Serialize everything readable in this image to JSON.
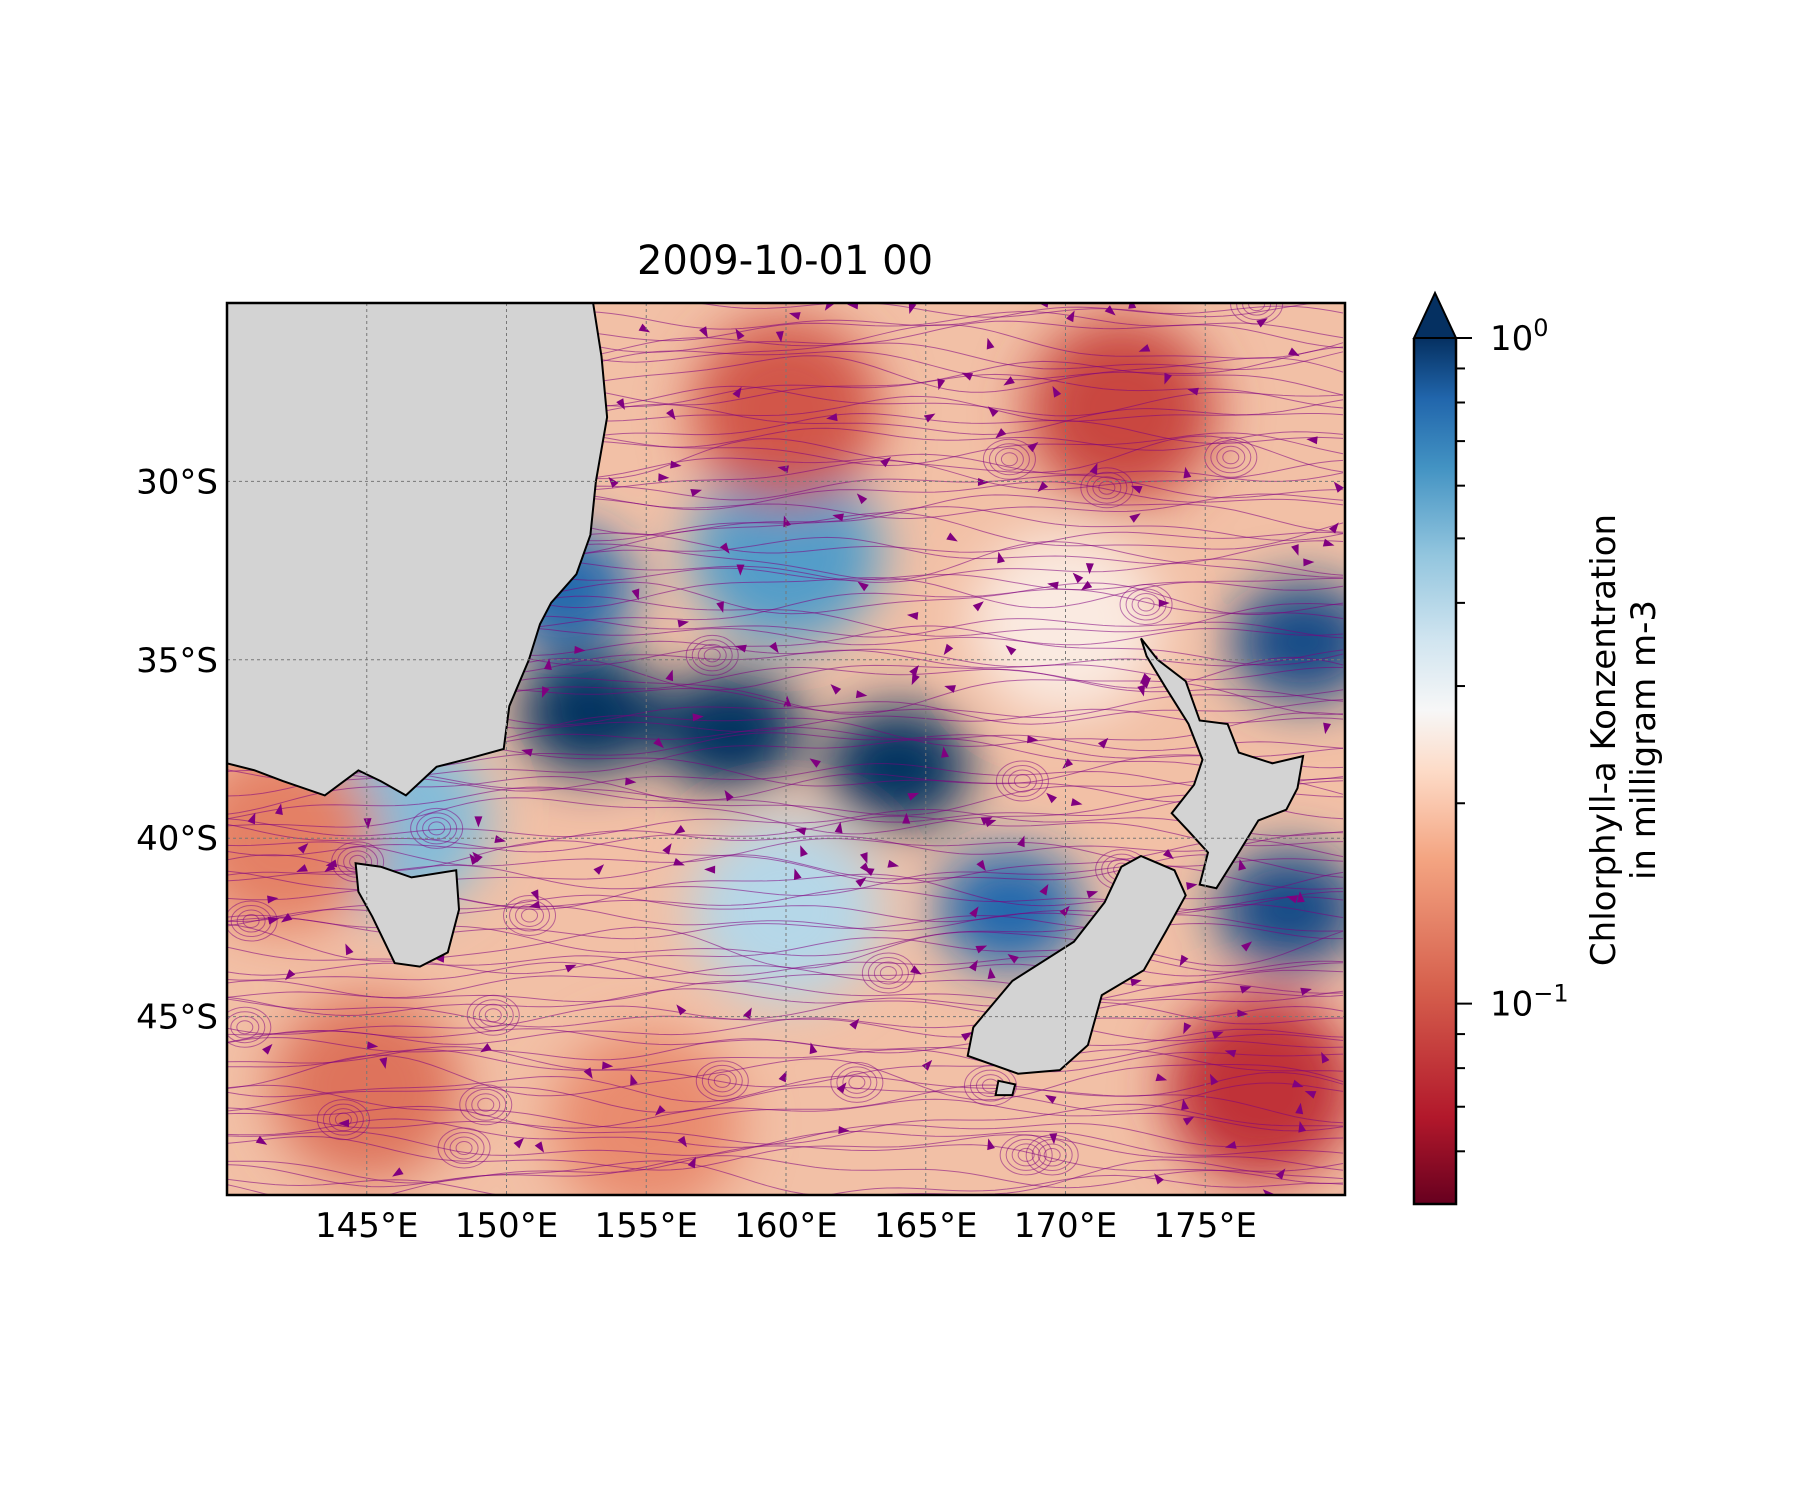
{
  "title": "2009-10-01 00",
  "map": {
    "projection": "plate-carree",
    "lon_range": [
      140,
      180
    ],
    "lat_range": [
      -50,
      -25
    ],
    "land_color": "#d3d3d3",
    "streamline_color": "#800080",
    "gridlines": "dashed-gray",
    "x_ticks": [
      {
        "value": 145,
        "label": "145°E"
      },
      {
        "value": 150,
        "label": "150°E"
      },
      {
        "value": 155,
        "label": "155°E"
      },
      {
        "value": 160,
        "label": "160°E"
      },
      {
        "value": 165,
        "label": "165°E"
      },
      {
        "value": 170,
        "label": "170°E"
      },
      {
        "value": 175,
        "label": "175°E"
      }
    ],
    "y_ticks": [
      {
        "value": -30,
        "label": "30°S"
      },
      {
        "value": -35,
        "label": "35°S"
      },
      {
        "value": -40,
        "label": "40°S"
      },
      {
        "value": -45,
        "label": "45°S"
      }
    ]
  },
  "colorbar": {
    "label_line1": "Chlorphyll-a Konzentration",
    "label_line2": "in milligram m-3",
    "colormap": "RdBu",
    "scale": "log",
    "range": [
      0.05,
      1.0
    ],
    "extend": "max",
    "major_ticks": [
      {
        "value": 1.0,
        "base": "10",
        "exp": "0"
      },
      {
        "value": 0.1,
        "base": "10",
        "exp": "−1"
      }
    ],
    "minor_ticks": [
      0.06,
      0.07,
      0.08,
      0.09,
      0.2,
      0.3,
      0.4,
      0.5,
      0.6,
      0.7,
      0.8,
      0.9
    ]
  },
  "chart_data": {
    "type": "heatmap",
    "title": "2009-10-01 00",
    "colorbar_label": "Chlorphyll-a Konzentration in milligram m-3",
    "lon_range": [
      140,
      180
    ],
    "lat_range": [
      -50,
      -25
    ],
    "regions": [
      {
        "lon": 158,
        "lat": -37,
        "value": 1.0
      },
      {
        "lon": 164,
        "lat": -38,
        "value": 1.0
      },
      {
        "lon": 153,
        "lat": -36.5,
        "value": 1.0
      },
      {
        "lon": 152,
        "lat": -33,
        "value": 0.8
      },
      {
        "lon": 160,
        "lat": -32,
        "value": 0.6
      },
      {
        "lon": 168,
        "lat": -42,
        "value": 0.8
      },
      {
        "lon": 178,
        "lat": -42,
        "value": 0.9
      },
      {
        "lon": 178.5,
        "lat": -34.5,
        "value": 0.9
      },
      {
        "lon": 146,
        "lat": -39.5,
        "value": 0.5
      },
      {
        "lon": 160,
        "lat": -42,
        "value": 0.4
      },
      {
        "lon": 170,
        "lat": -34,
        "value": 0.25
      },
      {
        "lon": 160,
        "lat": -28,
        "value": 0.1
      },
      {
        "lon": 172,
        "lat": -28,
        "value": 0.09
      },
      {
        "lon": 177,
        "lat": -47,
        "value": 0.08
      },
      {
        "lon": 145,
        "lat": -47,
        "value": 0.12
      },
      {
        "lon": 155,
        "lat": -48,
        "value": 0.14
      },
      {
        "lon": 142,
        "lat": -40,
        "value": 0.13
      }
    ]
  }
}
